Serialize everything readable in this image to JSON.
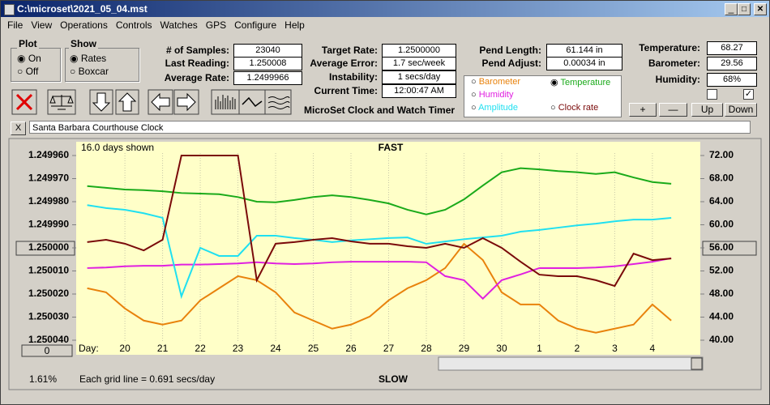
{
  "window": {
    "title": "C:\\microset\\2021_05_04.mst",
    "menu": [
      "File",
      "View",
      "Operations",
      "Controls",
      "Watches",
      "GPS",
      "Configure",
      "Help"
    ]
  },
  "panel": {
    "plot": {
      "title": "Plot",
      "options": [
        "On",
        "Off"
      ]
    },
    "show": {
      "title": "Show",
      "options": [
        "Rates",
        "Boxcar"
      ]
    },
    "fields": [
      {
        "label": "# of Samples:",
        "value": "23040"
      },
      {
        "label": "Last Reading:",
        "value": "1.250008"
      },
      {
        "label": "Average Rate:",
        "value": "1.2499966"
      },
      {
        "label": "Target Rate:",
        "value": "1.2500000"
      },
      {
        "label": "Average Error:",
        "value": "1.7 sec/week"
      },
      {
        "label": "Instability:",
        "value": "1 secs/day"
      },
      {
        "label": "Current Time:",
        "value": "12:00:47 AM"
      },
      {
        "label": "Pend Length:",
        "value": "61.144 in"
      },
      {
        "label": "Pend Adjust:",
        "value": "0.00034 in"
      },
      {
        "label": "Temperature:",
        "value": "68.27"
      },
      {
        "label": "Barometer:",
        "value": "29.56"
      },
      {
        "label": "Humidity:",
        "value": "68%"
      }
    ],
    "app_name": "MicroSet Clock and Watch Timer",
    "buttons": [
      "+",
      "—",
      "Up",
      "Down"
    ],
    "close": "X",
    "watch_name": "Santa Barbara Courthouse Clock"
  },
  "chart_data": {
    "type": "line",
    "days_shown": "16.0 days shown",
    "top_label": "FAST",
    "bottom_label": "SLOW",
    "x_label": "Day:",
    "grid_note": "Each grid line = 0.691 secs/day",
    "percent": "1.61%",
    "scroll_value": "0",
    "x": [
      -1,
      -0.5,
      0,
      0.5,
      1,
      1.5,
      2,
      2.5,
      3,
      3.5,
      4,
      4.5,
      5,
      5.5,
      6,
      6.5,
      7,
      7.5,
      8,
      8.5,
      9,
      9.5,
      10,
      10.5,
      11,
      11.5,
      12,
      12.5,
      13,
      13.5,
      14,
      14.5
    ],
    "xlim": [
      -1.25,
      15.25
    ],
    "xticks": [
      {
        "value": 0,
        "label": "20"
      },
      {
        "value": 1,
        "label": "21"
      },
      {
        "value": 2,
        "label": "22"
      },
      {
        "value": 3,
        "label": "23"
      },
      {
        "value": 4,
        "label": "24"
      },
      {
        "value": 5,
        "label": "25"
      },
      {
        "value": 6,
        "label": "26"
      },
      {
        "value": 7,
        "label": "27"
      },
      {
        "value": 8,
        "label": "28"
      },
      {
        "value": 9,
        "label": "29"
      },
      {
        "value": 10,
        "label": "30"
      },
      {
        "value": 11,
        "label": "1"
      },
      {
        "value": 12,
        "label": "2"
      },
      {
        "value": 13,
        "label": "3"
      },
      {
        "value": 14,
        "label": "4"
      }
    ],
    "ylim": [
      1.25004,
      1.24996
    ],
    "yticks": [
      {
        "value": 1.24996,
        "label": "1.249960"
      },
      {
        "value": 1.24997,
        "label": "1.249970"
      },
      {
        "value": 1.24998,
        "label": "1.249980"
      },
      {
        "value": 1.24999,
        "label": "1.249990"
      },
      {
        "value": 1.25,
        "label": "1.250000"
      },
      {
        "value": 1.25001,
        "label": "1.250010"
      },
      {
        "value": 1.25002,
        "label": "1.250020"
      },
      {
        "value": 1.25003,
        "label": "1.250030"
      },
      {
        "value": 1.25004,
        "label": "1.250040"
      }
    ],
    "y2lim": [
      40,
      72
    ],
    "y2ticks": [
      {
        "value": 72,
        "label": "72.00"
      },
      {
        "value": 68,
        "label": "68.00"
      },
      {
        "value": 64,
        "label": "64.00"
      },
      {
        "value": 60,
        "label": "60.00"
      },
      {
        "value": 56,
        "label": "56.00"
      },
      {
        "value": 52,
        "label": "52.00"
      },
      {
        "value": 48,
        "label": "48.00"
      },
      {
        "value": 44,
        "label": "44.00"
      },
      {
        "value": 40,
        "label": "40.00"
      }
    ],
    "grid": true,
    "series": [
      {
        "name": "Barometer",
        "color": "#e8820c",
        "axis": "y2",
        "values": [
          49.0,
          48.3,
          45.5,
          43.4,
          42.7,
          43.4,
          46.9,
          49.0,
          51.1,
          50.4,
          48.3,
          44.8,
          43.4,
          42.0,
          42.7,
          44.1,
          46.9,
          49.0,
          50.4,
          52.5,
          56.7,
          53.9,
          48.3,
          46.2,
          46.2,
          43.4,
          42.0,
          41.3,
          42.0,
          42.7,
          46.2,
          43.4
        ]
      },
      {
        "name": "Temperature",
        "color": "#1aaa1a",
        "axis": "y2",
        "values": [
          66.7,
          66.4,
          66.1,
          66.0,
          65.8,
          65.5,
          65.4,
          65.3,
          64.8,
          64.0,
          63.9,
          64.3,
          64.8,
          65.1,
          64.8,
          64.3,
          63.7,
          62.6,
          61.8,
          62.6,
          64.4,
          66.8,
          69.1,
          69.8,
          69.6,
          69.3,
          69.1,
          68.8,
          69.1,
          68.2,
          67.4,
          67.1
        ]
      },
      {
        "name": "Humidity",
        "color": "#e020e0",
        "axis": "y2",
        "values": [
          52.5,
          52.6,
          52.8,
          52.9,
          52.9,
          53.1,
          53.1,
          53.2,
          53.3,
          53.5,
          53.3,
          53.2,
          53.3,
          53.5,
          53.6,
          53.6,
          53.6,
          53.6,
          53.5,
          51.1,
          50.4,
          47.2,
          50.4,
          51.4,
          52.5,
          52.5,
          52.5,
          52.6,
          52.8,
          53.2,
          53.6,
          54.2
        ]
      },
      {
        "name": "Amplitude",
        "color": "#20e0f0",
        "axis": "y2",
        "values": [
          63.4,
          62.9,
          62.6,
          62.0,
          61.2,
          47.6,
          56.0,
          54.6,
          54.6,
          58.1,
          58.1,
          57.7,
          57.4,
          57.0,
          57.3,
          57.5,
          57.7,
          57.8,
          56.7,
          57.1,
          57.5,
          57.8,
          58.1,
          58.8,
          59.1,
          59.5,
          59.9,
          60.2,
          60.6,
          60.9,
          60.9,
          61.2
        ]
      },
      {
        "name": "Clock rate",
        "color": "#7a0a0a",
        "values": [
          1.2499975,
          1.2499965,
          1.2499982,
          1.2500011,
          1.2499965,
          1.24996,
          1.24996,
          1.24996,
          1.24996,
          1.250014,
          1.2499982,
          1.2499975,
          1.2499965,
          1.2499958,
          1.2499972,
          1.2499982,
          1.2499982,
          1.2499993,
          1.25,
          1.2499982,
          1.25,
          1.2499958,
          1.25,
          1.250006,
          1.2500116,
          1.2500123,
          1.2500123,
          1.250014,
          1.2500165,
          1.2500025,
          1.2500053,
          1.2500046
        ]
      }
    ]
  }
}
